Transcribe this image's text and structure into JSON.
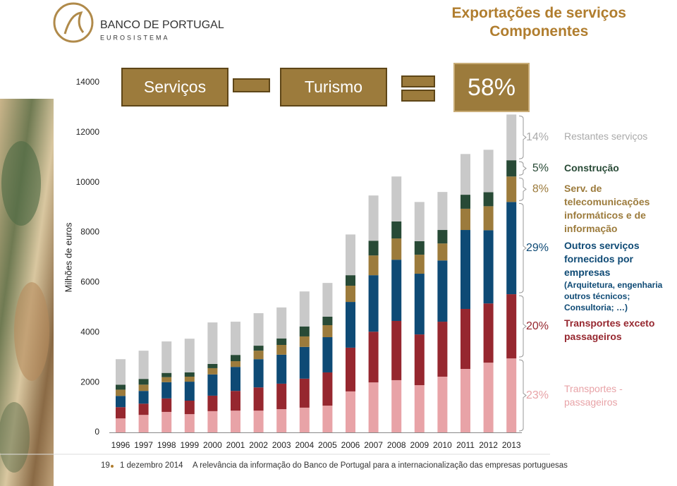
{
  "logo": {
    "name": "BANCO DE PORTUGAL",
    "subtitle": "EUROSISTEMA"
  },
  "equation": {
    "left": "Serviços",
    "right": "Turismo",
    "result": "58%"
  },
  "footer": {
    "page": "19",
    "date": "1 dezembro 2014",
    "text": "A relevância da informação do Banco de Portugal para a internacionalização das empresas portuguesas"
  },
  "chart_data": {
    "type": "stacked-bar",
    "title": "Exportações de serviços",
    "subtitle": "Componentes",
    "y_label": "Milhões de euros",
    "categories": [
      "1996",
      "1997",
      "1998",
      "1999",
      "2000",
      "2001",
      "2002",
      "2003",
      "2004",
      "2005",
      "2006",
      "2007",
      "2008",
      "2009",
      "2010",
      "2011",
      "2012",
      "2013"
    ],
    "ylim": [
      0,
      14000
    ],
    "yticks": [
      0,
      2000,
      4000,
      6000,
      8000,
      10000,
      12000,
      14000
    ],
    "grid": false,
    "series": [
      {
        "name": "Transportes - passageiros",
        "color": "#e8a3a7",
        "share_label": "23%",
        "values": [
          560,
          700,
          820,
          730,
          850,
          870,
          870,
          930,
          990,
          1070,
          1640,
          2000,
          2090,
          1890,
          2230,
          2540,
          2790,
          2960
        ]
      },
      {
        "name": "Transportes exceto passageiros",
        "color": "#96272f",
        "share_label": "20%",
        "values": [
          450,
          450,
          540,
          540,
          620,
          790,
          930,
          1020,
          1160,
          1330,
          1750,
          2030,
          2370,
          2030,
          2200,
          2400,
          2370,
          2570
        ]
      },
      {
        "name": "Outros serviços fornecidos por empresas",
        "note": "(Arquitetura, engenharia outros técnicos; Consultoria; …)",
        "color": "#0e4a75",
        "share_label": "29%",
        "values": [
          450,
          510,
          650,
          760,
          850,
          960,
          1130,
          1160,
          1270,
          1410,
          1830,
          2260,
          2450,
          2430,
          2450,
          3160,
          2930,
          3690
        ]
      },
      {
        "name": "Serv. de telecomunicações informáticos e de informação",
        "color": "#9c7b3c",
        "share_label": "8%",
        "values": [
          250,
          250,
          200,
          200,
          250,
          230,
          340,
          390,
          420,
          480,
          650,
          790,
          850,
          760,
          680,
          850,
          960,
          1020
        ]
      },
      {
        "name": "Construção",
        "color": "#284a36",
        "share_label": "5%",
        "values": [
          200,
          230,
          170,
          170,
          170,
          250,
          200,
          260,
          400,
          340,
          420,
          590,
          680,
          540,
          540,
          560,
          560,
          650
        ]
      },
      {
        "name": "Restantes serviços",
        "color": "#c9c9c9",
        "share_label": "14%",
        "values": [
          1020,
          1130,
          1260,
          1350,
          1660,
          1330,
          1300,
          1240,
          1400,
          1350,
          1630,
          1810,
          1800,
          1570,
          1520,
          1630,
          1700,
          1830
        ]
      }
    ]
  }
}
